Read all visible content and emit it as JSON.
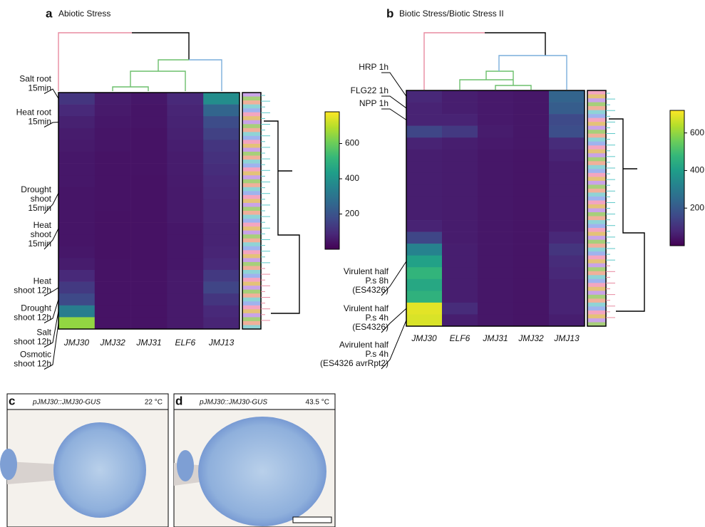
{
  "chart_data": [
    {
      "type": "heatmap",
      "letter": "a",
      "title": "Abiotic Stress",
      "categories": [
        "JMJ30",
        "JMJ32",
        "JMJ31",
        "ELF6",
        "JMJ13"
      ],
      "row_labels": [
        "Salt root\n15min",
        null,
        "Heat root\n15min",
        null,
        null,
        null,
        null,
        null,
        "Drought\nshoot\n15min",
        null,
        null,
        "Heat\nshoot\n15min",
        null,
        null,
        null,
        null,
        "Heat\nshoot 12h",
        "Drought\nshoot 12h",
        "Salt\nshoot 12h",
        "Osmotic\nshoot 12h"
      ],
      "values": [
        [
          120,
          60,
          50,
          90,
          380
        ],
        [
          90,
          55,
          45,
          80,
          250
        ],
        [
          70,
          50,
          45,
          75,
          180
        ],
        [
          60,
          45,
          40,
          70,
          150
        ],
        [
          55,
          45,
          40,
          65,
          120
        ],
        [
          50,
          40,
          40,
          60,
          110
        ],
        [
          50,
          40,
          40,
          60,
          100
        ],
        [
          50,
          40,
          38,
          58,
          90
        ],
        [
          45,
          40,
          38,
          55,
          85
        ],
        [
          45,
          40,
          38,
          55,
          80
        ],
        [
          45,
          38,
          38,
          55,
          80
        ],
        [
          45,
          38,
          38,
          50,
          75
        ],
        [
          45,
          38,
          38,
          50,
          75
        ],
        [
          50,
          38,
          38,
          50,
          80
        ],
        [
          60,
          40,
          38,
          50,
          90
        ],
        [
          90,
          40,
          40,
          55,
          130
        ],
        [
          130,
          40,
          40,
          55,
          160
        ],
        [
          170,
          40,
          40,
          55,
          120
        ],
        [
          330,
          40,
          40,
          55,
          90
        ],
        [
          650,
          40,
          40,
          55,
          80
        ]
      ],
      "clim": [
        0,
        780
      ],
      "cticks": [
        200,
        400,
        600
      ],
      "colormap": "viridis"
    },
    {
      "type": "heatmap",
      "letter": "b",
      "title": "Biotic Stress/Biotic Stress II",
      "categories": [
        "JMJ30",
        "ELF6",
        "JMJ31",
        "JMJ32",
        "JMJ13"
      ],
      "row_labels": [
        "HRP 1h",
        "FLG22 1h",
        "NPP 1h",
        null,
        null,
        null,
        null,
        null,
        null,
        null,
        null,
        null,
        null,
        null,
        "Virulent half\nP.s 8h\n(ES4326)",
        null,
        null,
        null,
        "Virulent half\nP.s 4h\n(ES4326)",
        "Avirulent half\nP.s 4h\n(ES4326 avrRpt2)"
      ],
      "values": [
        [
          80,
          60,
          50,
          45,
          230
        ],
        [
          70,
          60,
          50,
          45,
          210
        ],
        [
          70,
          70,
          50,
          45,
          160
        ],
        [
          150,
          120,
          55,
          45,
          170
        ],
        [
          70,
          60,
          50,
          45,
          90
        ],
        [
          60,
          55,
          45,
          40,
          70
        ],
        [
          60,
          55,
          45,
          40,
          60
        ],
        [
          60,
          55,
          45,
          40,
          60
        ],
        [
          60,
          55,
          45,
          40,
          60
        ],
        [
          60,
          55,
          45,
          40,
          60
        ],
        [
          60,
          55,
          45,
          40,
          60
        ],
        [
          70,
          55,
          45,
          40,
          60
        ],
        [
          150,
          55,
          45,
          40,
          80
        ],
        [
          320,
          60,
          45,
          40,
          110
        ],
        [
          410,
          60,
          45,
          40,
          90
        ],
        [
          470,
          60,
          45,
          40,
          80
        ],
        [
          430,
          60,
          45,
          40,
          70
        ],
        [
          460,
          60,
          45,
          40,
          70
        ],
        [
          690,
          90,
          45,
          40,
          70
        ],
        [
          680,
          60,
          45,
          40,
          60
        ]
      ],
      "clim": [
        0,
        720
      ],
      "cticks": [
        200,
        400,
        600
      ],
      "colormap": "viridis"
    }
  ],
  "photos": [
    {
      "letter": "c",
      "construct": "pJMJ30::JMJ30-GUS",
      "temperature": "22 °C"
    },
    {
      "letter": "d",
      "construct": "pJMJ30::JMJ30-GUS",
      "temperature": "43.5 °C"
    }
  ]
}
